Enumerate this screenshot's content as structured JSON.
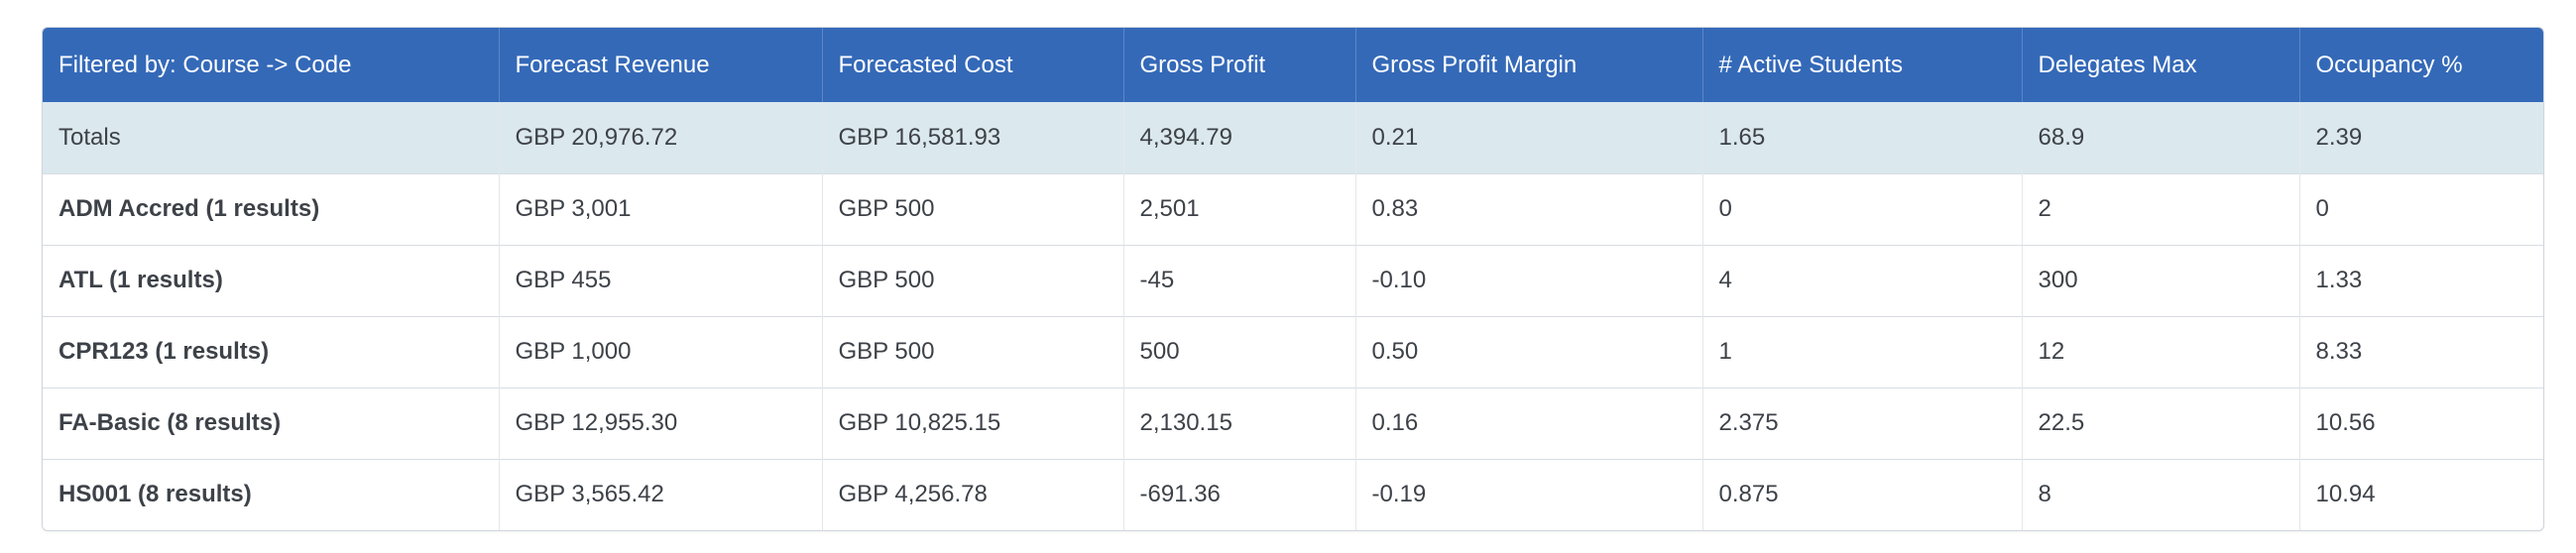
{
  "table": {
    "headers": [
      "Filtered by: Course -> Code",
      "Forecast Revenue",
      "Forecasted Cost",
      "Gross Profit",
      "Gross Profit Margin",
      "# Active Students",
      "Delegates Max",
      "Occupancy %"
    ],
    "totals": [
      "Totals",
      "GBP 20,976.72",
      "GBP 16,581.93",
      "4,394.79",
      "0.21",
      "1.65",
      "68.9",
      "2.39"
    ],
    "rows": [
      [
        "ADM Accred (1 results)",
        "GBP 3,001",
        "GBP 500",
        "2,501",
        "0.83",
        "0",
        "2",
        "0"
      ],
      [
        "ATL (1 results)",
        "GBP 455",
        "GBP 500",
        "-45",
        "-0.10",
        "4",
        "300",
        "1.33"
      ],
      [
        "CPR123 (1 results)",
        "GBP 1,000",
        "GBP 500",
        "500",
        "0.50",
        "1",
        "12",
        "8.33"
      ],
      [
        "FA-Basic (8 results)",
        "GBP 12,955.30",
        "GBP 10,825.15",
        "2,130.15",
        "0.16",
        "2.375",
        "22.5",
        "10.56"
      ],
      [
        "HS001 (8 results)",
        "GBP 3,565.42",
        "GBP 4,256.78",
        "-691.36",
        "-0.19",
        "0.875",
        "8",
        "10.94"
      ]
    ]
  },
  "colors": {
    "header_bg": "#3469b8",
    "totals_bg": "#dbe8ee",
    "border": "#d8dde2"
  }
}
